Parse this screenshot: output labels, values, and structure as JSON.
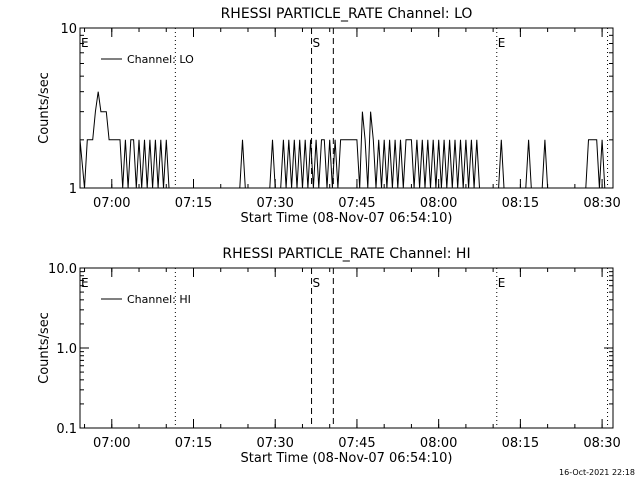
{
  "chart_data": [
    {
      "type": "line",
      "title": "RHESSI PARTICLE_RATE Channel: LO",
      "xlabel": "Start Time (08-Nov-07 06:54:10)",
      "ylabel": "Counts/sec",
      "y_scale": "log",
      "ylim": [
        1,
        10
      ],
      "y_ticks": [
        "1",
        "10"
      ],
      "xlim": [
        "06:54:10",
        "08:32:00"
      ],
      "x_ticks": [
        "07:00",
        "07:15",
        "07:30",
        "07:45",
        "08:00",
        "08:15",
        "08:30"
      ],
      "legend": {
        "placement": "top-left",
        "entries": [
          "Channel: LO"
        ]
      },
      "markers": [
        {
          "label": "E",
          "style": "dotted",
          "time": "06:54:10"
        },
        {
          "label": "",
          "style": "dotted",
          "time": "07:11:40"
        },
        {
          "label": "S",
          "style": "dashed",
          "time": "07:36:40"
        },
        {
          "label": "",
          "style": "dashed",
          "time": "07:40:40"
        },
        {
          "label": "E",
          "style": "dotted",
          "time": "08:10:40"
        },
        {
          "label": "",
          "style": "dotted",
          "time": "08:31:00"
        }
      ],
      "series": [
        {
          "name": "Channel: LO",
          "points": [
            [
              "06:54:10",
              2
            ],
            [
              "06:55:00",
              1
            ],
            [
              "06:55:30",
              2
            ],
            [
              "06:56:30",
              2
            ],
            [
              "06:57:00",
              3
            ],
            [
              "06:57:30",
              4
            ],
            [
              "06:58:00",
              3
            ],
            [
              "06:59:00",
              3
            ],
            [
              "06:59:30",
              2
            ],
            [
              "07:01:30",
              2
            ],
            [
              "07:02:00",
              1
            ],
            [
              "07:02:30",
              2
            ],
            [
              "07:03:00",
              1
            ],
            [
              "07:03:30",
              2
            ],
            [
              "07:04:00",
              2
            ],
            [
              "07:04:30",
              1
            ],
            [
              "07:05:00",
              2
            ],
            [
              "07:05:30",
              1
            ],
            [
              "07:06:00",
              2
            ],
            [
              "07:06:30",
              1
            ],
            [
              "07:07:00",
              2
            ],
            [
              "07:07:30",
              1
            ],
            [
              "07:08:00",
              2
            ],
            [
              "07:08:30",
              1
            ],
            [
              "07:09:00",
              2
            ],
            [
              "07:09:30",
              1
            ],
            [
              "07:10:00",
              2
            ],
            [
              "07:10:30",
              1
            ],
            [
              "07:23:30",
              1
            ],
            [
              "07:24:00",
              2
            ],
            [
              "07:24:30",
              1
            ],
            [
              "07:29:00",
              1
            ],
            [
              "07:29:30",
              2
            ],
            [
              "07:30:00",
              1
            ],
            [
              "07:31:00",
              1
            ],
            [
              "07:31:30",
              2
            ],
            [
              "07:32:00",
              1
            ],
            [
              "07:32:30",
              2
            ],
            [
              "07:33:00",
              1
            ],
            [
              "07:33:30",
              2
            ],
            [
              "07:34:00",
              1
            ],
            [
              "07:34:30",
              2
            ],
            [
              "07:35:00",
              1
            ],
            [
              "07:35:30",
              2
            ],
            [
              "07:36:00",
              1
            ],
            [
              "07:36:30",
              2
            ],
            [
              "07:37:00",
              1
            ],
            [
              "07:37:30",
              2
            ],
            [
              "07:38:00",
              1
            ],
            [
              "07:38:30",
              2
            ],
            [
              "07:39:00",
              2
            ],
            [
              "07:39:30",
              1
            ],
            [
              "07:40:00",
              2
            ],
            [
              "07:40:30",
              1
            ],
            [
              "07:41:00",
              2
            ],
            [
              "07:41:30",
              1
            ],
            [
              "07:42:00",
              2
            ],
            [
              "07:45:00",
              2
            ],
            [
              "07:45:30",
              1
            ],
            [
              "07:46:00",
              3
            ],
            [
              "07:46:30",
              2
            ],
            [
              "07:47:00",
              1
            ],
            [
              "07:47:30",
              3
            ],
            [
              "07:48:00",
              2
            ],
            [
              "07:48:30",
              1
            ],
            [
              "07:49:00",
              2
            ],
            [
              "07:49:30",
              1
            ],
            [
              "07:50:00",
              2
            ],
            [
              "07:50:30",
              1
            ],
            [
              "07:51:00",
              2
            ],
            [
              "07:51:30",
              1
            ],
            [
              "07:52:00",
              2
            ],
            [
              "07:52:30",
              1
            ],
            [
              "07:53:00",
              2
            ],
            [
              "07:53:30",
              1
            ],
            [
              "07:54:00",
              2
            ],
            [
              "07:55:00",
              2
            ],
            [
              "07:55:30",
              1
            ],
            [
              "07:56:00",
              2
            ],
            [
              "07:56:30",
              1
            ],
            [
              "07:57:00",
              2
            ],
            [
              "07:57:30",
              1
            ],
            [
              "07:58:00",
              2
            ],
            [
              "07:58:30",
              1
            ],
            [
              "07:59:00",
              2
            ],
            [
              "07:59:30",
              1
            ],
            [
              "08:00:00",
              2
            ],
            [
              "08:00:30",
              1
            ],
            [
              "08:01:00",
              2
            ],
            [
              "08:01:30",
              1
            ],
            [
              "08:02:00",
              2
            ],
            [
              "08:02:30",
              1
            ],
            [
              "08:03:00",
              2
            ],
            [
              "08:03:30",
              1
            ],
            [
              "08:04:00",
              2
            ],
            [
              "08:04:30",
              1
            ],
            [
              "08:05:00",
              2
            ],
            [
              "08:05:30",
              1
            ],
            [
              "08:06:00",
              2
            ],
            [
              "08:06:30",
              1
            ],
            [
              "08:07:00",
              2
            ],
            [
              "08:07:30",
              1
            ],
            [
              "08:11:00",
              1
            ],
            [
              "08:11:30",
              2
            ],
            [
              "08:12:00",
              1
            ],
            [
              "08:16:00",
              1
            ],
            [
              "08:16:30",
              2
            ],
            [
              "08:17:00",
              1
            ],
            [
              "08:19:00",
              1
            ],
            [
              "08:19:30",
              2
            ],
            [
              "08:20:00",
              1
            ],
            [
              "08:27:00",
              1
            ],
            [
              "08:27:30",
              2
            ],
            [
              "08:29:00",
              2
            ],
            [
              "08:29:30",
              1
            ],
            [
              "08:30:00",
              2
            ],
            [
              "08:30:30",
              1
            ],
            [
              "08:31:00",
              1
            ]
          ]
        }
      ]
    },
    {
      "type": "line",
      "title": "RHESSI PARTICLE_RATE Channel: HI",
      "xlabel": "Start Time (08-Nov-07 06:54:10)",
      "ylabel": "Counts/sec",
      "y_scale": "log",
      "ylim": [
        0.1,
        10
      ],
      "y_ticks": [
        "0.1",
        "1.0",
        "10.0"
      ],
      "xlim": [
        "06:54:10",
        "08:32:00"
      ],
      "x_ticks": [
        "07:00",
        "07:15",
        "07:30",
        "07:45",
        "08:00",
        "08:15",
        "08:30"
      ],
      "legend": {
        "placement": "top-left",
        "entries": [
          "Channel: HI"
        ]
      },
      "markers": [
        {
          "label": "E",
          "style": "dotted",
          "time": "06:54:10"
        },
        {
          "label": "",
          "style": "dotted",
          "time": "07:11:40"
        },
        {
          "label": "S",
          "style": "dashed",
          "time": "07:36:40"
        },
        {
          "label": "",
          "style": "dashed",
          "time": "07:40:40"
        },
        {
          "label": "E",
          "style": "dotted",
          "time": "08:10:40"
        },
        {
          "label": "",
          "style": "dotted",
          "time": "08:31:00"
        }
      ],
      "series": [
        {
          "name": "Channel: HI",
          "points": []
        }
      ]
    }
  ],
  "footer": {
    "timestamp": "16-Oct-2021 22:18"
  }
}
